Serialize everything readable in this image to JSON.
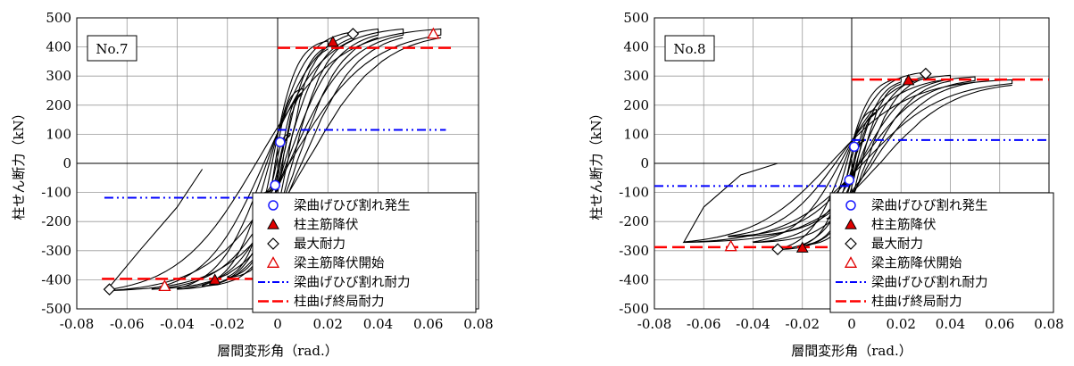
{
  "colors": {
    "grid": "#999999",
    "curve": "#000000",
    "crack_marker": "#1a1aff",
    "rebar_yield_marker": "#e00000",
    "beam_crack_line": "#0000ff",
    "ultimate_line": "#ff0000"
  },
  "chart_data": [
    {
      "type": "line",
      "panel_label": "No.7",
      "xlabel": "層間変形角（rad.）",
      "ylabel": "柱せん断力（kN）",
      "xlim": [
        -0.08,
        0.08
      ],
      "ylim": [
        -500,
        500
      ],
      "x_ticks": [
        "-0.08",
        "-0.06",
        "-0.04",
        "-0.02",
        "0",
        "0.02",
        "0.04",
        "0.06",
        "0.08"
      ],
      "y_ticks": [
        "500",
        "400",
        "300",
        "200",
        "100",
        "0",
        "-100",
        "-200",
        "-300",
        "-400",
        "-500"
      ],
      "grid": true,
      "legend": {
        "placement": "bottom-right",
        "entries": [
          "梁曲げひび割れ発生",
          "柱主筋降伏",
          "最大耐力",
          "梁主筋降伏開始",
          "梁曲げひび割れ耐力",
          "柱曲げ終局耐力"
        ]
      },
      "loops": [
        {
          "pos": [
            0.005,
            100
          ],
          "neg": [
            -0.005,
            -100
          ]
        },
        {
          "pos": [
            0.01,
            250
          ],
          "neg": [
            -0.01,
            -250
          ]
        },
        {
          "pos": [
            0.02,
            410
          ],
          "neg": [
            -0.02,
            -390
          ]
        },
        {
          "pos": [
            0.03,
            440
          ],
          "neg": [
            -0.03,
            -420
          ]
        },
        {
          "pos": [
            0.04,
            450
          ],
          "neg": [
            -0.04,
            -430
          ]
        },
        {
          "pos": [
            0.05,
            450
          ],
          "neg": [
            -0.05,
            -430
          ]
        },
        {
          "pos": [
            0.065,
            450
          ],
          "neg": [
            -0.068,
            -435
          ]
        }
      ],
      "final_tail": [
        [
          -0.068,
          -435
        ],
        [
          -0.055,
          -300
        ],
        [
          -0.04,
          -150
        ],
        [
          -0.03,
          -20
        ]
      ],
      "ref_lines": [
        {
          "kind": "beam_crack",
          "y": 115,
          "x_from": 0,
          "x_to": 0.067
        },
        {
          "kind": "beam_crack",
          "y": -118,
          "x_from": -0.069,
          "x_to": 0
        },
        {
          "kind": "ultimate",
          "y": 397,
          "x_from": 0,
          "x_to": 0.07
        },
        {
          "kind": "ultimate",
          "y": -397,
          "x_from": -0.07,
          "x_to": 0
        }
      ],
      "markers": [
        {
          "kind": "beam_crack",
          "x": 0.001,
          "y": 73
        },
        {
          "kind": "beam_crack",
          "x": -0.001,
          "y": -75
        },
        {
          "kind": "rebar_yield",
          "x": 0.022,
          "y": 417
        },
        {
          "kind": "rebar_yield",
          "x": -0.025,
          "y": -400
        },
        {
          "kind": "max",
          "x": 0.03,
          "y": 445
        },
        {
          "kind": "max",
          "x": -0.067,
          "y": -433
        },
        {
          "kind": "beam_yield",
          "x": 0.062,
          "y": 445
        },
        {
          "kind": "beam_yield",
          "x": -0.045,
          "y": -422
        }
      ]
    },
    {
      "type": "line",
      "panel_label": "No.8",
      "xlabel": "層間変形角（rad.）",
      "ylabel": "柱せん断力（kN）",
      "xlim": [
        -0.08,
        0.08
      ],
      "ylim": [
        -500,
        500
      ],
      "x_ticks": [
        "-0.08",
        "-0.06",
        "-0.04",
        "-0.02",
        "0",
        "0.02",
        "0.04",
        "0.06",
        "0.08"
      ],
      "y_ticks": [
        "500",
        "400",
        "300",
        "200",
        "100",
        "0",
        "-100",
        "-200",
        "-300",
        "-400",
        "-500"
      ],
      "grid": true,
      "legend": {
        "placement": "bottom-right",
        "entries": [
          "梁曲げひび割れ発生",
          "柱主筋降伏",
          "最大耐力",
          "梁主筋降伏開始",
          "梁曲げひび割れ耐力",
          "柱曲げ終局耐力"
        ]
      },
      "loops": [
        {
          "pos": [
            0.005,
            80
          ],
          "neg": [
            -0.005,
            -80
          ]
        },
        {
          "pos": [
            0.01,
            180
          ],
          "neg": [
            -0.01,
            -190
          ]
        },
        {
          "pos": [
            0.02,
            285
          ],
          "neg": [
            -0.02,
            -280
          ]
        },
        {
          "pos": [
            0.03,
            305
          ],
          "neg": [
            -0.03,
            -295
          ]
        },
        {
          "pos": [
            0.04,
            295
          ],
          "neg": [
            -0.04,
            -270
          ]
        },
        {
          "pos": [
            0.05,
            290
          ],
          "neg": [
            -0.05,
            -250
          ]
        },
        {
          "pos": [
            0.065,
            280
          ],
          "neg": [
            -0.068,
            -270
          ]
        }
      ],
      "final_tail": [
        [
          -0.068,
          -270
        ],
        [
          -0.06,
          -150
        ],
        [
          -0.045,
          -40
        ],
        [
          -0.03,
          0
        ]
      ],
      "ref_lines": [
        {
          "kind": "beam_crack",
          "y": 80,
          "x_from": 0,
          "x_to": 0.08
        },
        {
          "kind": "beam_crack",
          "y": -78,
          "x_from": -0.08,
          "x_to": 0
        },
        {
          "kind": "ultimate",
          "y": 288,
          "x_from": 0,
          "x_to": 0.08
        },
        {
          "kind": "ultimate",
          "y": -288,
          "x_from": -0.08,
          "x_to": 0
        }
      ],
      "markers": [
        {
          "kind": "beam_crack",
          "x": 0.001,
          "y": 57
        },
        {
          "kind": "beam_crack",
          "x": -0.001,
          "y": -57
        },
        {
          "kind": "rebar_yield",
          "x": 0.023,
          "y": 285
        },
        {
          "kind": "rebar_yield",
          "x": -0.02,
          "y": -290
        },
        {
          "kind": "max",
          "x": 0.03,
          "y": 308
        },
        {
          "kind": "max",
          "x": -0.03,
          "y": -295
        },
        {
          "kind": "beam_yield",
          "x": -0.049,
          "y": -285
        }
      ]
    }
  ]
}
